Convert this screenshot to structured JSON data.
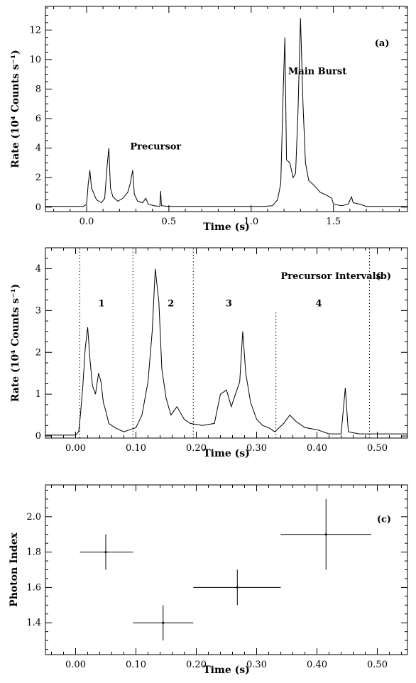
{
  "chart_data": [
    {
      "panel": "(a)",
      "type": "line",
      "title": "",
      "xlabel": "Time (s)",
      "ylabel": "Rate (10⁴ Counts s⁻¹)",
      "xlim": [
        -0.25,
        1.95
      ],
      "ylim": [
        -0.3,
        13.6
      ],
      "xticks": [
        0.0,
        0.5,
        1.0,
        1.5
      ],
      "xtick_labels": [
        "0.0",
        "0.5",
        "1.0",
        "1.5"
      ],
      "yticks": [
        0,
        2,
        4,
        6,
        8,
        10,
        12
      ],
      "ytick_labels": [
        "0",
        "2",
        "4",
        "6",
        "8",
        "10",
        "12"
      ],
      "annotations": [
        {
          "text": "(a)",
          "x": 1.84,
          "y": 10.9
        },
        {
          "text": "Main Burst",
          "x": 1.58,
          "y": 9.0
        },
        {
          "text": "Precursor",
          "x": 0.42,
          "y": 3.9
        }
      ],
      "series": [
        {
          "values": [
            [
              -0.25,
              0.05
            ],
            [
              -0.02,
              0.05
            ],
            [
              0.0,
              0.2
            ],
            [
              0.01,
              1.6
            ],
            [
              0.02,
              2.5
            ],
            [
              0.03,
              1.3
            ],
            [
              0.045,
              0.9
            ],
            [
              0.06,
              0.5
            ],
            [
              0.09,
              0.3
            ],
            [
              0.11,
              0.6
            ],
            [
              0.125,
              2.8
            ],
            [
              0.135,
              4.0
            ],
            [
              0.145,
              1.3
            ],
            [
              0.16,
              0.7
            ],
            [
              0.19,
              0.4
            ],
            [
              0.22,
              0.6
            ],
            [
              0.25,
              1.0
            ],
            [
              0.265,
              1.6
            ],
            [
              0.28,
              2.5
            ],
            [
              0.29,
              0.9
            ],
            [
              0.31,
              0.4
            ],
            [
              0.34,
              0.3
            ],
            [
              0.36,
              0.6
            ],
            [
              0.375,
              0.2
            ],
            [
              0.41,
              0.1
            ],
            [
              0.445,
              0.05
            ],
            [
              0.45,
              1.1
            ],
            [
              0.455,
              0.1
            ],
            [
              0.5,
              0.05
            ],
            [
              1.08,
              0.05
            ],
            [
              1.13,
              0.1
            ],
            [
              1.16,
              0.5
            ],
            [
              1.18,
              1.6
            ],
            [
              1.195,
              8.0
            ],
            [
              1.205,
              11.5
            ],
            [
              1.215,
              3.2
            ],
            [
              1.235,
              3.0
            ],
            [
              1.255,
              2.0
            ],
            [
              1.27,
              2.3
            ],
            [
              1.285,
              6.5
            ],
            [
              1.3,
              12.8
            ],
            [
              1.315,
              7.0
            ],
            [
              1.33,
              3.0
            ],
            [
              1.35,
              1.8
            ],
            [
              1.38,
              1.5
            ],
            [
              1.42,
              1.0
            ],
            [
              1.46,
              0.8
            ],
            [
              1.49,
              0.6
            ],
            [
              1.5,
              0.2
            ],
            [
              1.55,
              0.1
            ],
            [
              1.59,
              0.2
            ],
            [
              1.61,
              0.7
            ],
            [
              1.62,
              0.3
            ],
            [
              1.66,
              0.2
            ],
            [
              1.7,
              0.05
            ],
            [
              1.95,
              0.05
            ]
          ]
        }
      ]
    },
    {
      "panel": "(b)",
      "type": "line",
      "title": "",
      "xlabel": "Time (s)",
      "ylabel": "Rate (10⁴ Counts s⁻¹)",
      "xlim": [
        -0.05,
        0.55
      ],
      "ylim": [
        -0.05,
        4.5
      ],
      "xticks": [
        0.0,
        0.1,
        0.2,
        0.3,
        0.4,
        0.5
      ],
      "xtick_labels": [
        "0.00",
        "0.10",
        "0.20",
        "0.30",
        "0.40",
        "0.50"
      ],
      "yticks": [
        0,
        1,
        2,
        3,
        4
      ],
      "ytick_labels": [
        "0",
        "1",
        "2",
        "3",
        "4"
      ],
      "interval_boundaries": [
        {
          "x": 0.007,
          "ytop": 4.5
        },
        {
          "x": 0.095,
          "ytop": 4.5
        },
        {
          "x": 0.195,
          "ytop": 4.5
        },
        {
          "x": 0.332,
          "ytop": 3.0
        },
        {
          "x": 0.487,
          "ytop": 4.5
        }
      ],
      "annotations": [
        {
          "text": "Precursor Intervals",
          "x": 0.34,
          "y": 3.75
        },
        {
          "text": "(b)",
          "x": 0.523,
          "y": 3.75
        },
        {
          "text": "1",
          "x": 0.043,
          "y": 3.1
        },
        {
          "text": "2",
          "x": 0.158,
          "y": 3.1
        },
        {
          "text": "3",
          "x": 0.254,
          "y": 3.1
        },
        {
          "text": "4",
          "x": 0.403,
          "y": 3.1
        }
      ],
      "series": [
        {
          "values": [
            [
              -0.05,
              0.02
            ],
            [
              0.0,
              0.02
            ],
            [
              0.005,
              0.1
            ],
            [
              0.008,
              0.5
            ],
            [
              0.012,
              1.2
            ],
            [
              0.016,
              2.1
            ],
            [
              0.02,
              2.6
            ],
            [
              0.024,
              1.8
            ],
            [
              0.028,
              1.2
            ],
            [
              0.033,
              1.0
            ],
            [
              0.038,
              1.5
            ],
            [
              0.042,
              1.3
            ],
            [
              0.046,
              0.8
            ],
            [
              0.05,
              0.6
            ],
            [
              0.055,
              0.3
            ],
            [
              0.065,
              0.2
            ],
            [
              0.08,
              0.1
            ],
            [
              0.09,
              0.15
            ],
            [
              0.1,
              0.2
            ],
            [
              0.11,
              0.5
            ],
            [
              0.12,
              1.3
            ],
            [
              0.127,
              2.5
            ],
            [
              0.132,
              4.0
            ],
            [
              0.138,
              3.2
            ],
            [
              0.143,
              1.6
            ],
            [
              0.15,
              0.9
            ],
            [
              0.158,
              0.5
            ],
            [
              0.168,
              0.7
            ],
            [
              0.18,
              0.4
            ],
            [
              0.19,
              0.3
            ],
            [
              0.21,
              0.25
            ],
            [
              0.23,
              0.3
            ],
            [
              0.24,
              1.0
            ],
            [
              0.25,
              1.1
            ],
            [
              0.258,
              0.7
            ],
            [
              0.265,
              1.0
            ],
            [
              0.272,
              1.3
            ],
            [
              0.277,
              2.5
            ],
            [
              0.282,
              1.5
            ],
            [
              0.29,
              0.8
            ],
            [
              0.3,
              0.4
            ],
            [
              0.31,
              0.25
            ],
            [
              0.32,
              0.2
            ],
            [
              0.33,
              0.1
            ],
            [
              0.345,
              0.3
            ],
            [
              0.355,
              0.5
            ],
            [
              0.365,
              0.35
            ],
            [
              0.38,
              0.2
            ],
            [
              0.4,
              0.15
            ],
            [
              0.42,
              0.05
            ],
            [
              0.44,
              0.05
            ],
            [
              0.447,
              1.15
            ],
            [
              0.452,
              0.1
            ],
            [
              0.47,
              0.05
            ],
            [
              0.55,
              0.05
            ]
          ]
        }
      ]
    },
    {
      "panel": "(c)",
      "type": "scatter",
      "title": "",
      "xlabel": "Time (s)",
      "ylabel": "Photon Index",
      "xlim": [
        -0.05,
        0.55
      ],
      "ylim": [
        1.22,
        2.18
      ],
      "xticks": [
        0.0,
        0.1,
        0.2,
        0.3,
        0.4,
        0.5
      ],
      "xtick_labels": [
        "0.00",
        "0.10",
        "0.20",
        "0.30",
        "0.40",
        "0.50"
      ],
      "yticks": [
        1.4,
        1.6,
        1.8,
        2.0
      ],
      "ytick_labels": [
        "1.4",
        "1.6",
        "1.8",
        "2.0"
      ],
      "annotations": [
        {
          "text": "(c)",
          "x": 0.523,
          "y": 1.97
        }
      ],
      "series": [
        {
          "points": [
            {
              "x": 0.05,
              "y": 1.8,
              "xerr": [
                0.007,
                0.095
              ],
              "yerr": [
                1.7,
                1.9
              ]
            },
            {
              "x": 0.145,
              "y": 1.4,
              "xerr": [
                0.095,
                0.195
              ],
              "yerr": [
                1.3,
                1.5
              ]
            },
            {
              "x": 0.268,
              "y": 1.6,
              "xerr": [
                0.195,
                0.34
              ],
              "yerr": [
                1.5,
                1.7
              ]
            },
            {
              "x": 0.415,
              "y": 1.9,
              "xerr": [
                0.34,
                0.49
              ],
              "yerr": [
                1.7,
                2.1
              ]
            }
          ]
        }
      ]
    }
  ]
}
